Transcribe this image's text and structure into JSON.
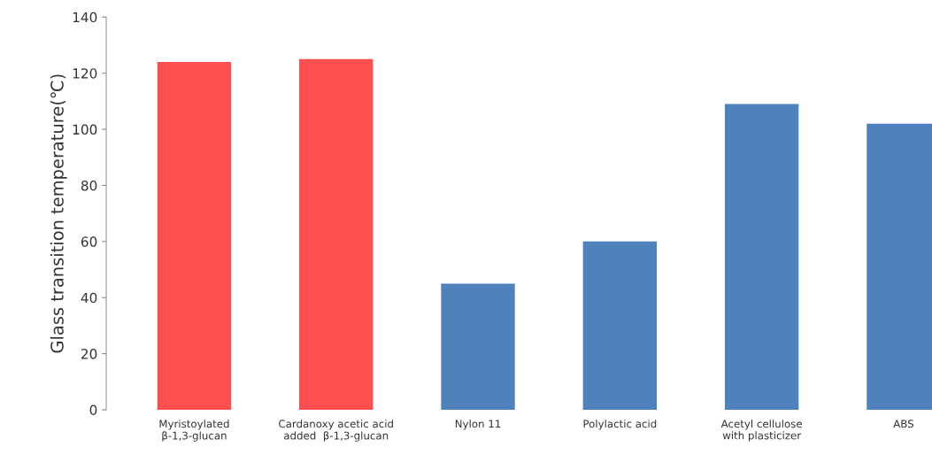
{
  "chart_data": {
    "type": "bar",
    "ylabel": "Glass transition temperature(℃)",
    "categories": [
      "Myristoylated\nβ-1,3-glucan",
      "Cardanoxy acetic acid\nadded  β-1,3-glucan",
      "Nylon 11",
      "Polylactic acid",
      "Acetyl cellulose\nwith plasticizer",
      "ABS"
    ],
    "values": [
      124,
      125,
      45,
      60,
      109,
      102
    ],
    "colors": [
      "#fd4e50",
      "#fd4e50",
      "#4f81bd",
      "#4f81bd",
      "#4f81bd",
      "#4f81bd"
    ],
    "ylim": [
      0,
      140
    ],
    "yticks": [
      0,
      20,
      40,
      60,
      80,
      100,
      120,
      140
    ],
    "grid": false
  }
}
